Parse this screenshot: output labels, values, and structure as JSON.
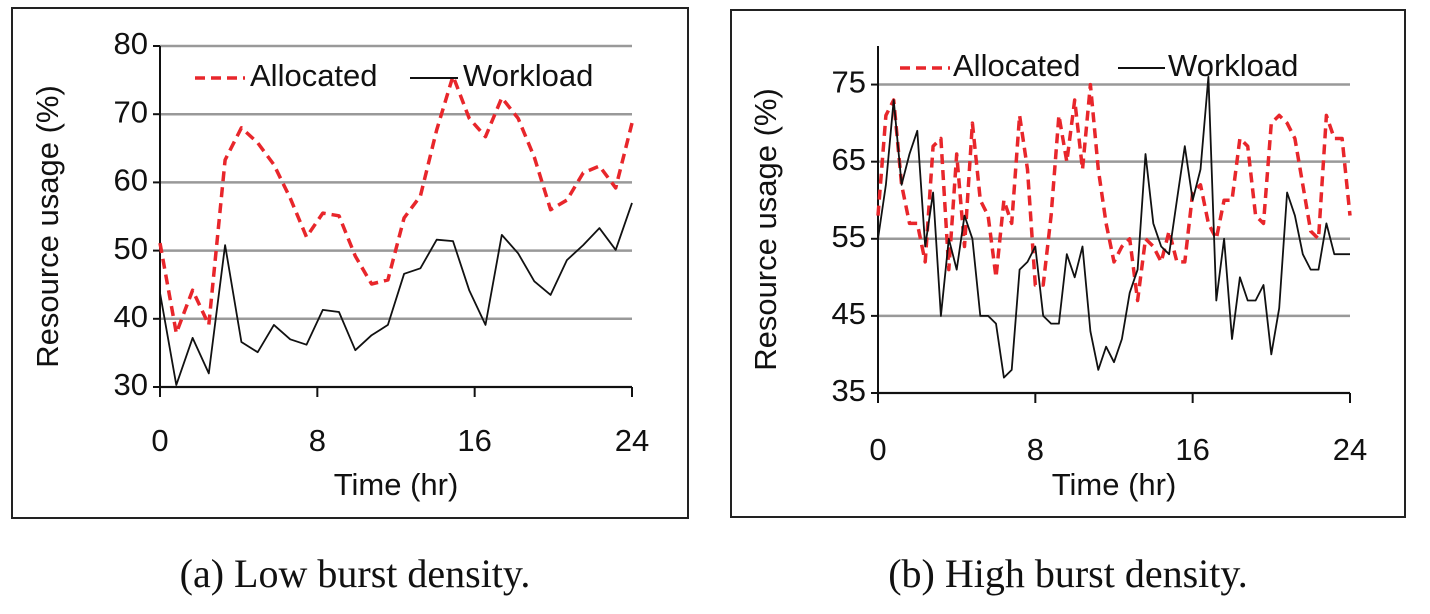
{
  "chart_data": [
    {
      "type": "line",
      "caption": "(a) Low burst density.",
      "y_label": "Resource usage (%)",
      "x_label": "Time (hr)",
      "x": [
        0,
        0.83,
        1.66,
        2.48,
        3.31,
        4.14,
        4.97,
        5.79,
        6.62,
        7.45,
        8.28,
        9.1,
        9.93,
        10.76,
        11.59,
        12.41,
        13.24,
        14.07,
        14.9,
        15.72,
        16.55,
        17.38,
        18.21,
        19.03,
        19.86,
        20.69,
        21.52,
        22.34,
        23.17,
        24
      ],
      "series": [
        {
          "name": "Allocated",
          "color": "#e8262b",
          "dashed": true,
          "values": [
            51.1,
            37.9,
            44.2,
            39.1,
            63.3,
            68,
            65.8,
            62.6,
            57.7,
            52,
            55.5,
            55.1,
            49.2,
            45.1,
            45.7,
            54.8,
            58,
            67.7,
            75.6,
            69.4,
            66.7,
            72.4,
            69.4,
            63.7,
            56,
            57.4,
            61.4,
            62.4,
            59.2,
            68.7
          ]
        },
        {
          "name": "Workload",
          "color": "#111111",
          "dashed": false,
          "values": [
            43.8,
            30.3,
            37.2,
            32,
            50.8,
            36.6,
            35.1,
            39.1,
            37,
            36.2,
            41.3,
            41,
            35.4,
            37.6,
            39.1,
            46.6,
            47.4,
            51.6,
            51.4,
            44.2,
            39.1,
            52.3,
            49.6,
            45.5,
            43.5,
            48.6,
            50.8,
            53.3,
            50.1,
            57
          ]
        }
      ],
      "xlim": [
        0,
        24
      ],
      "xticks": [
        0,
        8,
        16,
        24
      ],
      "ylim": [
        30,
        80
      ],
      "yticks": [
        30,
        40,
        50,
        60,
        70,
        80
      ],
      "grid": true
    },
    {
      "type": "line",
      "caption": "(b) High burst density.",
      "y_label": "Resource usage (%)",
      "x_label": "Time (hr)",
      "x": [
        0,
        0.4,
        0.8,
        1.2,
        1.6,
        2,
        2.4,
        2.8,
        3.2,
        3.6,
        4,
        4.4,
        4.8,
        5.2,
        5.6,
        6,
        6.4,
        6.8,
        7.2,
        7.6,
        8,
        8.4,
        8.8,
        9.2,
        9.6,
        10,
        10.4,
        10.8,
        11.2,
        11.6,
        12,
        12.4,
        12.8,
        13.2,
        13.6,
        14,
        14.4,
        14.8,
        15.2,
        15.6,
        16,
        16.4,
        16.8,
        17.2,
        17.6,
        18,
        18.4,
        18.8,
        19.2,
        19.6,
        20,
        20.4,
        20.8,
        21.2,
        21.6,
        22,
        22.4,
        22.8,
        23.2,
        23.6,
        24
      ],
      "series": [
        {
          "name": "Allocated",
          "color": "#e8262b",
          "dashed": true,
          "values": [
            58,
            71,
            73,
            62,
            57,
            57,
            52,
            67,
            68,
            51,
            66,
            54,
            70,
            60,
            58,
            50,
            60,
            57,
            71,
            64,
            49,
            49,
            58,
            71,
            65,
            73,
            64,
            75,
            64,
            57,
            52,
            54,
            55,
            47,
            55,
            54,
            52,
            56,
            52,
            52,
            61,
            62,
            57,
            55,
            60,
            60,
            68,
            67,
            58,
            57,
            70,
            71,
            70,
            68,
            62,
            56,
            55,
            71,
            68,
            68,
            58
          ]
        },
        {
          "name": "Workload",
          "color": "#111111",
          "dashed": false,
          "values": [
            55,
            62,
            73,
            62,
            66,
            69,
            54,
            61,
            45,
            55,
            51,
            58,
            55,
            45,
            45,
            44,
            37,
            38,
            51,
            52,
            54,
            45,
            44,
            44,
            53,
            50,
            54,
            43,
            38,
            41,
            39,
            42,
            48,
            51,
            66,
            57,
            54,
            53,
            60,
            67,
            60,
            64,
            76,
            47,
            55,
            42,
            50,
            47,
            47,
            49,
            40,
            46,
            61,
            58,
            53,
            51,
            51,
            57,
            53,
            53,
            53
          ]
        }
      ],
      "xlim": [
        0,
        24
      ],
      "xticks": [
        0,
        8,
        16,
        24
      ],
      "ylim": [
        35,
        80
      ],
      "yticks": [
        35,
        45,
        55,
        65,
        75
      ],
      "grid": true
    }
  ]
}
